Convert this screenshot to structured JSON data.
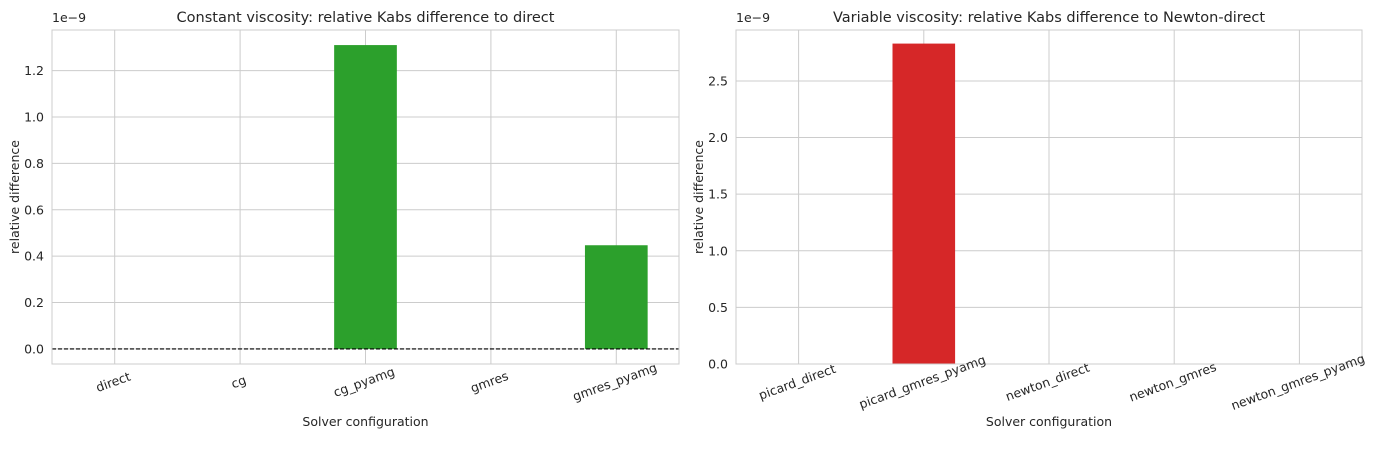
{
  "chart_data": [
    {
      "type": "bar",
      "title": "Constant viscosity: relative Kabs difference to direct",
      "xlabel": "Solver configuration",
      "ylabel": "relative difference",
      "offset_text": "1e−9",
      "categories": [
        "direct",
        "cg",
        "cg_pyamg",
        "gmres",
        "gmres_pyamg"
      ],
      "values": [
        0,
        0,
        1.31e-09,
        0,
        4.47e-10
      ],
      "bar_color": "#2ca02c",
      "ylim": [
        -6.5e-11,
        1.375e-09
      ],
      "yticks": [
        0,
        2e-10,
        4e-10,
        6e-10,
        8e-10,
        1e-09,
        1.2e-09
      ],
      "ytick_labels": [
        "0.0",
        "0.2",
        "0.4",
        "0.6",
        "0.8",
        "1.0",
        "1.2"
      ],
      "reference_line": {
        "y": 0,
        "style": "dashed",
        "color": "#000000"
      },
      "grid": true
    },
    {
      "type": "bar",
      "title": "Variable viscosity: relative Kabs difference to Newton-direct",
      "xlabel": "Solver configuration",
      "ylabel": "relative difference",
      "offset_text": "1e−9",
      "categories": [
        "picard_direct",
        "picard_gmres_pyamg",
        "newton_direct",
        "newton_gmres",
        "newton_gmres_pyamg"
      ],
      "values": [
        0,
        2.83e-09,
        0,
        0,
        0
      ],
      "bar_color": "#d62728",
      "ylim": [
        0,
        2.95e-09
      ],
      "yticks": [
        0,
        5e-10,
        1e-09,
        1.5e-09,
        2e-09,
        2.5e-09
      ],
      "ytick_labels": [
        "0.0",
        "0.5",
        "1.0",
        "1.5",
        "2.0",
        "2.5"
      ],
      "reference_line": {
        "y": 0,
        "style": "dashed",
        "color": "#cccccc"
      },
      "grid": true
    }
  ]
}
